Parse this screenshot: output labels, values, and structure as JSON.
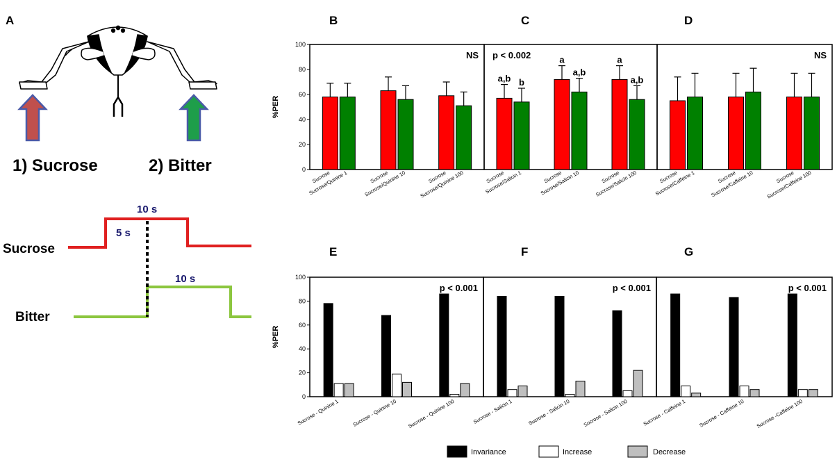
{
  "panel_a": {
    "letter": "A",
    "label_sucrose": "1) Sucrose",
    "label_bitter": "2) Bitter",
    "colors": {
      "sucrose_arrow": "#c0504d",
      "bitter_arrow": "#1e9e4a",
      "arrow_edge": "#4a5aa8"
    }
  },
  "timing": {
    "sucrose_label": "Sucrose",
    "bitter_label": "Bitter",
    "sucrose_duration": "10 s",
    "delay": "5 s",
    "bitter_duration": "10 s",
    "colors": {
      "sucrose": "#e02020",
      "bitter": "#8cc63f"
    }
  },
  "colors": {
    "sucrose_bar": "#ff0000",
    "bitter_bar": "#008000",
    "invariance": "#000000",
    "increase": "#ffffff",
    "decrease": "#bfbfbf"
  },
  "chart_data": [
    {
      "id": "B",
      "type": "bar",
      "ylabel": "%PER",
      "ylim": [
        0,
        100
      ],
      "yticks": [
        0,
        20,
        40,
        60,
        80,
        100
      ],
      "stat": "NS",
      "categories": [
        [
          "Sucrose",
          "Sucrose/Quinine 1"
        ],
        [
          "Sucrose",
          "Sucrose/Quinine 10"
        ],
        [
          "Sucrose",
          "Sucrose/Quinine 100"
        ]
      ],
      "series": [
        {
          "name": "Sucrose",
          "values": [
            58,
            63,
            59
          ],
          "errors": [
            11,
            11,
            11
          ]
        },
        {
          "name": "Bitter",
          "values": [
            58,
            56,
            51
          ],
          "errors": [
            11,
            11,
            11
          ]
        }
      ],
      "annotations": []
    },
    {
      "id": "C",
      "type": "bar",
      "ylabel": "%PER",
      "ylim": [
        0,
        100
      ],
      "yticks": [
        0,
        20,
        40,
        60,
        80,
        100
      ],
      "stat": "p < 0.002",
      "categories": [
        [
          "Sucrose",
          "Sucrose/Salicin 1"
        ],
        [
          "Sucrose",
          "Sucrose/Salicin 10"
        ],
        [
          "Sucrose",
          "Sucrose/Salicin 100"
        ]
      ],
      "series": [
        {
          "name": "Sucrose",
          "values": [
            57,
            72,
            72
          ],
          "errors": [
            11,
            11,
            11
          ]
        },
        {
          "name": "Bitter",
          "values": [
            54,
            62,
            56
          ],
          "errors": [
            11,
            11,
            11
          ]
        }
      ],
      "annotations": [
        [
          "a,b",
          "b"
        ],
        [
          "a",
          "a,b"
        ],
        [
          "a",
          "a,b"
        ]
      ]
    },
    {
      "id": "D",
      "type": "bar",
      "ylabel": "%PER",
      "ylim": [
        0,
        100
      ],
      "yticks": [
        0,
        20,
        40,
        60,
        80,
        100
      ],
      "stat": "NS",
      "categories": [
        [
          "Sucrose",
          "Sucrose/Caffeine 1"
        ],
        [
          "Sucrose",
          "Sucrose/Caffeine 10"
        ],
        [
          "Sucrose",
          "Sucrose/Caffeine 100"
        ]
      ],
      "series": [
        {
          "name": "Sucrose",
          "values": [
            55,
            58,
            58
          ],
          "errors": [
            19,
            19,
            19
          ]
        },
        {
          "name": "Bitter",
          "values": [
            58,
            62,
            58
          ],
          "errors": [
            19,
            19,
            19
          ]
        }
      ],
      "annotations": []
    },
    {
      "id": "E",
      "type": "bar",
      "ylabel": "%PER",
      "ylim": [
        0,
        100
      ],
      "yticks": [
        0,
        20,
        40,
        60,
        80,
        100
      ],
      "stat": "p < 0.001",
      "categories": [
        "Sucrose - Quinine 1",
        "Sucrose - Quinine 10",
        "Sucrose - Quinine 100"
      ],
      "series": [
        {
          "name": "Invariance",
          "values": [
            78,
            68,
            86
          ]
        },
        {
          "name": "Increase",
          "values": [
            11,
            19,
            2
          ]
        },
        {
          "name": "Decrease",
          "values": [
            11,
            12,
            11
          ]
        }
      ]
    },
    {
      "id": "F",
      "type": "bar",
      "ylabel": "%PER",
      "ylim": [
        0,
        100
      ],
      "yticks": [
        0,
        20,
        40,
        60,
        80,
        100
      ],
      "stat": "p < 0.001",
      "categories": [
        "Sucrose - Salicin 1",
        "Sucrose - Salicin 10",
        "Sucrose - Salicin 100"
      ],
      "series": [
        {
          "name": "Invariance",
          "values": [
            84,
            84,
            72
          ]
        },
        {
          "name": "Increase",
          "values": [
            6,
            2,
            5
          ]
        },
        {
          "name": "Decrease",
          "values": [
            9,
            13,
            22
          ]
        }
      ]
    },
    {
      "id": "G",
      "type": "bar",
      "ylabel": "%PER",
      "ylim": [
        0,
        100
      ],
      "yticks": [
        0,
        20,
        40,
        60,
        80,
        100
      ],
      "stat": "p < 0.001",
      "categories": [
        "Sucrose - Caffeine 1",
        "Sucrose - Caffeine 10",
        "Sucrose -Caffeine 100"
      ],
      "series": [
        {
          "name": "Invariance",
          "values": [
            86,
            83,
            86
          ]
        },
        {
          "name": "Increase",
          "values": [
            9,
            9,
            6
          ]
        },
        {
          "name": "Decrease",
          "values": [
            3,
            6,
            6
          ]
        }
      ]
    }
  ],
  "legend": [
    {
      "label": "Invariance",
      "key": "invariance"
    },
    {
      "label": "Increase",
      "key": "increase"
    },
    {
      "label": "Decrease",
      "key": "decrease"
    }
  ]
}
